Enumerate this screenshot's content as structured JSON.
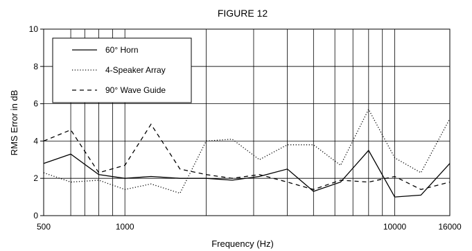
{
  "chart_data": {
    "type": "line",
    "title": "FIGURE 12",
    "xlabel": "Frequency (Hz)",
    "ylabel": "RMS Error in dB",
    "xscale": "log",
    "xlim": [
      500,
      16000
    ],
    "ylim": [
      0,
      10
    ],
    "x_tick_labels": [
      {
        "value": 500,
        "label": "500"
      },
      {
        "value": 1000,
        "label": "1000"
      },
      {
        "value": 10000,
        "label": "10000"
      },
      {
        "value": 16000,
        "label": "16000"
      }
    ],
    "y_ticks": [
      0,
      2,
      4,
      6,
      8,
      10
    ],
    "y_tick_labels": [
      "0",
      "2",
      "4",
      "6",
      "8",
      "10"
    ],
    "vertical_gridlines_at": [
      630,
      710,
      800,
      900,
      1000,
      2000,
      3000,
      4000,
      5000,
      6000,
      7000,
      8000,
      9000,
      10000
    ],
    "horizontal_gridlines": true,
    "legend_position": "top-left",
    "x": [
      500,
      630,
      800,
      1000,
      1250,
      1600,
      2000,
      2500,
      3150,
      4000,
      5000,
      6300,
      8000,
      10000,
      12500,
      16000
    ],
    "series": [
      {
        "name": "60° Horn",
        "style": "solid",
        "values": [
          2.8,
          3.3,
          2.2,
          2.0,
          2.1,
          2.0,
          2.0,
          1.9,
          2.1,
          2.5,
          1.3,
          1.8,
          3.5,
          1.0,
          1.1,
          2.8
        ]
      },
      {
        "name": "4-Speaker Array",
        "style": "dotted",
        "values": [
          2.3,
          1.8,
          1.9,
          1.4,
          1.7,
          1.2,
          4.0,
          4.1,
          3.0,
          3.8,
          3.8,
          2.7,
          5.7,
          3.1,
          2.3,
          5.2
        ]
      },
      {
        "name": "90° Wave Guide",
        "style": "dashed",
        "values": [
          4.0,
          4.6,
          2.3,
          2.7,
          4.9,
          2.5,
          2.2,
          2.0,
          2.2,
          1.8,
          1.4,
          1.9,
          1.8,
          2.1,
          1.4,
          1.8
        ]
      }
    ]
  }
}
